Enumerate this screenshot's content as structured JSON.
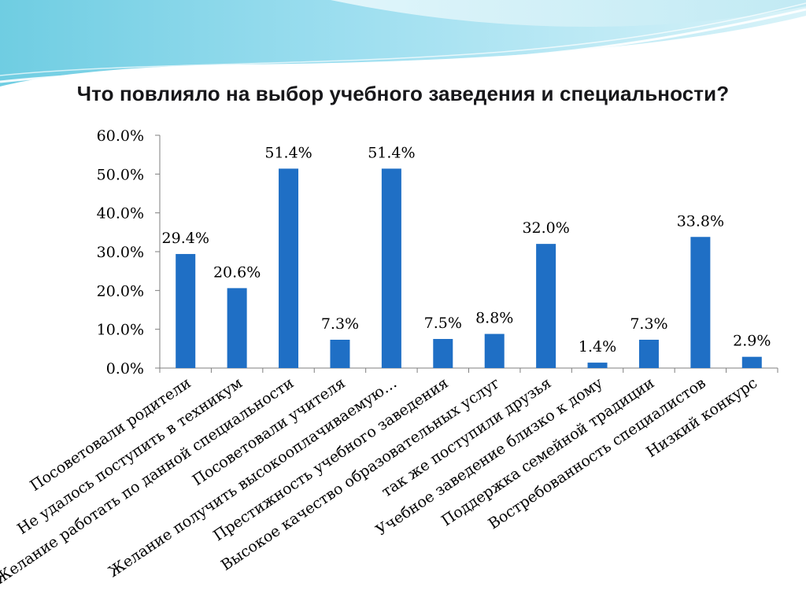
{
  "slide": {
    "title": "Что повлияло на выбор учебного заведения и специальности?"
  },
  "colors": {
    "bar": "#1f6fc5",
    "axis": "#7f7f7f",
    "text": "#000000",
    "header_light": "#bfe9f3",
    "header_mid": "#6fcde2"
  },
  "chart_data": {
    "type": "bar",
    "categories": [
      "Посоветовали родители",
      "Не удалось поступить в техникум",
      "Желание работать по данной специальности",
      "Посоветовали учителя",
      "Желание  получить высокооплачиваемую…",
      "Престижность учебного заведения",
      "Высокое качество образовательных услуг",
      "так же поступили друзья",
      "Учебное заведение близко к дому",
      "Поддержка семейной традиции",
      "Востребованность специалистов",
      "Низкий конкурс"
    ],
    "values": [
      29.4,
      20.6,
      51.4,
      7.3,
      51.4,
      7.5,
      8.8,
      32.0,
      1.4,
      7.3,
      33.8,
      2.9
    ],
    "value_labels": [
      "29.4%",
      "20.6%",
      "51.4%",
      "7.3%",
      "51.4%",
      "7.5%",
      "8.8%",
      "32.0%",
      "1.4%",
      "7.3%",
      "33.8%",
      "2.9%"
    ],
    "ylim": [
      0,
      60
    ],
    "yticks": [
      "0.0%",
      "10.0%",
      "20.0%",
      "30.0%",
      "40.0%",
      "50.0%",
      "60.0%"
    ],
    "title": "",
    "xlabel": "",
    "ylabel": "",
    "grid": false,
    "legend": "none"
  }
}
